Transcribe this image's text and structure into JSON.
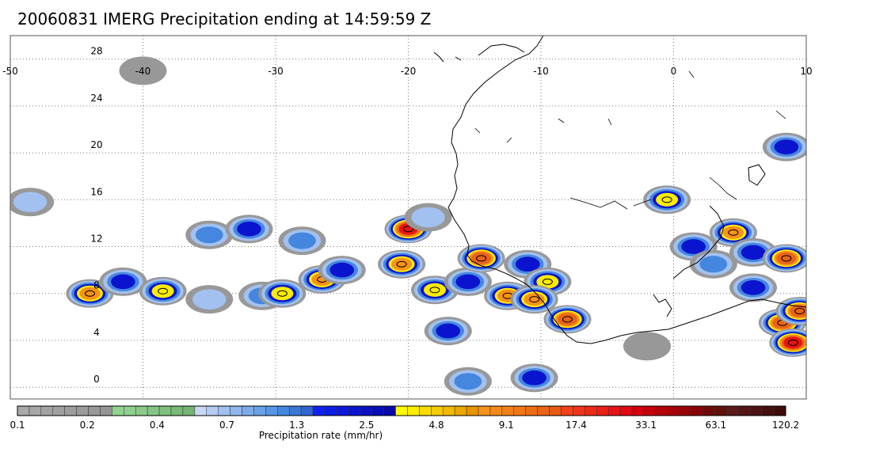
{
  "title": "20060831 IMERG Precipitation ending at 14:59:59 Z",
  "map": {
    "lon_range": [
      -50,
      10
    ],
    "lat_range": [
      -1,
      30
    ],
    "lon_ticks": [
      -50,
      -40,
      -30,
      -20,
      -10,
      0,
      10
    ],
    "lat_ticks": [
      0,
      4,
      8,
      12,
      16,
      20,
      24,
      28
    ],
    "lon_tick_labels": [
      "-50",
      "-40",
      "-30",
      "-20",
      "-10",
      "0",
      "10"
    ],
    "lat_tick_labels": [
      "0",
      "4",
      "8",
      "12",
      "16",
      "20",
      "24",
      "28"
    ],
    "grid": "dotted",
    "coastline_color": "#000000"
  },
  "precip_cells": [
    {
      "lon": -44.0,
      "lat": 8.0,
      "intensity": 9.1
    },
    {
      "lon": -41.5,
      "lat": 9.0,
      "intensity": 2.5
    },
    {
      "lon": -38.5,
      "lat": 8.2,
      "intensity": 4.8
    },
    {
      "lon": -35.0,
      "lat": 7.5,
      "intensity": 0.7
    },
    {
      "lon": -31.0,
      "lat": 7.8,
      "intensity": 1.3
    },
    {
      "lon": -29.5,
      "lat": 8.0,
      "intensity": 4.8
    },
    {
      "lon": -26.5,
      "lat": 9.2,
      "intensity": 9.1
    },
    {
      "lon": -25.0,
      "lat": 10.0,
      "intensity": 2.5
    },
    {
      "lon": -35.0,
      "lat": 13.0,
      "intensity": 1.3
    },
    {
      "lon": -32.0,
      "lat": 13.5,
      "intensity": 2.5
    },
    {
      "lon": -28.0,
      "lat": 12.5,
      "intensity": 1.3
    },
    {
      "lon": -20.0,
      "lat": 13.5,
      "intensity": 33.1
    },
    {
      "lon": -18.5,
      "lat": 14.5,
      "intensity": 0.7
    },
    {
      "lon": -20.5,
      "lat": 10.5,
      "intensity": 9.1
    },
    {
      "lon": -18.0,
      "lat": 8.3,
      "intensity": 4.8
    },
    {
      "lon": -15.5,
      "lat": 9.0,
      "intensity": 2.5
    },
    {
      "lon": -14.5,
      "lat": 11.0,
      "intensity": 17.4
    },
    {
      "lon": -12.5,
      "lat": 7.8,
      "intensity": 9.1
    },
    {
      "lon": -11.0,
      "lat": 10.5,
      "intensity": 2.5
    },
    {
      "lon": -9.5,
      "lat": 9.0,
      "intensity": 4.8
    },
    {
      "lon": -10.5,
      "lat": 7.5,
      "intensity": 9.1
    },
    {
      "lon": -8.0,
      "lat": 5.8,
      "intensity": 17.4
    },
    {
      "lon": -17.0,
      "lat": 4.8,
      "intensity": 2.5
    },
    {
      "lon": -15.5,
      "lat": 0.5,
      "intensity": 1.3
    },
    {
      "lon": -10.5,
      "lat": 0.8,
      "intensity": 2.5
    },
    {
      "lon": -0.5,
      "lat": 16.0,
      "intensity": 4.8
    },
    {
      "lon": 1.5,
      "lat": 12.0,
      "intensity": 2.5
    },
    {
      "lon": 3.0,
      "lat": 10.5,
      "intensity": 1.3
    },
    {
      "lon": 4.5,
      "lat": 13.2,
      "intensity": 9.1
    },
    {
      "lon": 6.0,
      "lat": 11.5,
      "intensity": 2.5
    },
    {
      "lon": 8.5,
      "lat": 11.0,
      "intensity": 17.4
    },
    {
      "lon": 6.0,
      "lat": 8.5,
      "intensity": 2.5
    },
    {
      "lon": 8.2,
      "lat": 5.5,
      "intensity": 17.4
    },
    {
      "lon": 9.5,
      "lat": 6.5,
      "intensity": 17.4
    },
    {
      "lon": 9.0,
      "lat": 3.8,
      "intensity": 33.1
    },
    {
      "lon": 8.5,
      "lat": 20.5,
      "intensity": 2.5
    },
    {
      "lon": -48.5,
      "lat": 15.8,
      "intensity": 0.7
    },
    {
      "lon": -40.0,
      "lat": 27.0,
      "intensity": 0.2
    },
    {
      "lon": -2.0,
      "lat": 3.5,
      "intensity": 0.4
    }
  ],
  "colorbar": {
    "colors": [
      "#a9a9a9",
      "#a6a6a6",
      "#a3a3a3",
      "#a0a0a0",
      "#9e9e9e",
      "#9b9b9b",
      "#989898",
      "#959595",
      "#92d392",
      "#8ed08e",
      "#8ac98a",
      "#85c485",
      "#7fbf7f",
      "#79ba79",
      "#74b574",
      "#c7d7f4",
      "#b5cbf1",
      "#a3c1f0",
      "#90b7ee",
      "#7eaceb",
      "#6ba1e8",
      "#5895e4",
      "#4587df",
      "#3a78d8",
      "#2f66d0",
      "#0f22f2",
      "#0e1de6",
      "#0c18da",
      "#0a13ce",
      "#0a10c2",
      "#080db6",
      "#0608aa",
      "#fffb00",
      "#fcec00",
      "#f8dc00",
      "#f3cb00",
      "#efb900",
      "#eba600",
      "#e79500",
      "#f7921a",
      "#f48919",
      "#f28018",
      "#f07717",
      "#ed6d16",
      "#eb6315",
      "#e85914",
      "#f3411b",
      "#f03619",
      "#ed2a17",
      "#ea1f15",
      "#e71413",
      "#e00a10",
      "#d4000d",
      "#c4000a",
      "#b80009",
      "#a80008",
      "#980007",
      "#880006",
      "#700a08",
      "#631008",
      "#5c1a1a",
      "#551515",
      "#4e1212",
      "#470e0e",
      "#400a0a"
    ],
    "labels": [
      "0.1",
      "0.2",
      "0.4",
      "0.7",
      "1.3",
      "2.5",
      "4.8",
      "9.1",
      "17.4",
      "33.1",
      "63.1",
      "120.2"
    ],
    "unit_label": "Precipitation rate (mm/hr)"
  }
}
